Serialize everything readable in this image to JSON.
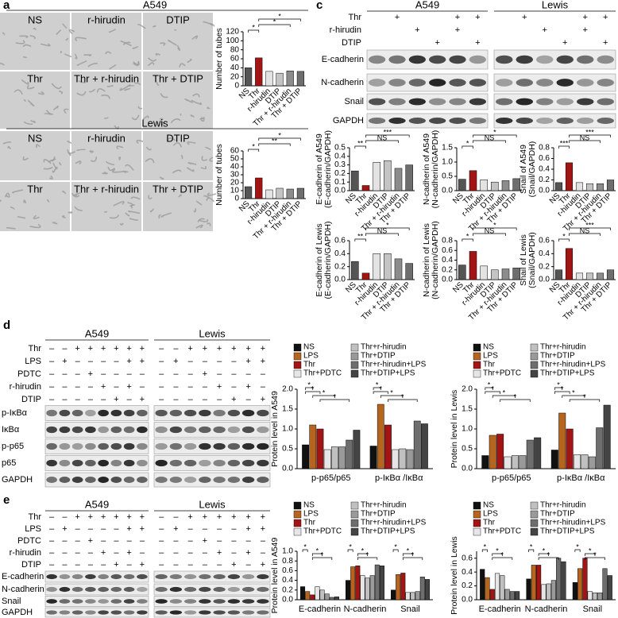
{
  "panel_labels": [
    "a",
    "b",
    "c",
    "d",
    "e"
  ],
  "micrographs": {
    "a": {
      "header": "A549",
      "labels": [
        "NS",
        "r-hirudin",
        "DTIP",
        "Thr",
        "Thr + r-hirudin",
        "Thr + DTIP"
      ]
    },
    "b": {
      "header": "Lewis",
      "labels": [
        "NS",
        "r-hirudin",
        "DTIP",
        "Thr",
        "Thr + r-hirudin",
        "Thr + DTIP"
      ]
    }
  },
  "blots": {
    "c": {
      "headers": [
        "A549",
        "Lewis"
      ],
      "conditions": [
        {
          "name": "Thr",
          "signs": [
            null,
            "+",
            null,
            null,
            "+",
            "+",
            null,
            "+",
            null,
            null,
            "+",
            "+"
          ]
        },
        {
          "name": "r-hirudin",
          "signs": [
            null,
            null,
            "+",
            null,
            "+",
            null,
            null,
            null,
            "+",
            null,
            "+",
            null
          ]
        },
        {
          "name": "DTIP",
          "signs": [
            null,
            null,
            null,
            "+",
            null,
            "+",
            null,
            null,
            null,
            "+",
            null,
            "+"
          ]
        }
      ],
      "rows": [
        "E-cadherin",
        "N-cadherin",
        "Snail",
        "GAPDH"
      ]
    },
    "d": {
      "headers": [
        "A549",
        "Lewis"
      ],
      "conditions": [
        {
          "name": "Thr",
          "signs": [
            "–",
            "–",
            "+",
            "+",
            "+",
            "+",
            "+",
            "+",
            "–",
            "–",
            "+",
            "+",
            "+",
            "+",
            "+",
            "+"
          ]
        },
        {
          "name": "LPS",
          "signs": [
            "–",
            "+",
            "–",
            "–",
            "–",
            "–",
            "+",
            "+",
            "–",
            "+",
            "–",
            "–",
            "–",
            "–",
            "+",
            "+"
          ]
        },
        {
          "name": "PDTC",
          "signs": [
            "–",
            "–",
            "–",
            "+",
            "–",
            "–",
            "–",
            "–",
            "–",
            "–",
            "–",
            "+",
            "–",
            "–",
            "–",
            "–"
          ]
        },
        {
          "name": "r-hirudin",
          "signs": [
            "–",
            "–",
            "–",
            "–",
            "+",
            "–",
            "+",
            "–",
            "–",
            "–",
            "–",
            "–",
            "+",
            "–",
            "+",
            "–"
          ]
        },
        {
          "name": "DTIP",
          "signs": [
            "–",
            "–",
            "–",
            "–",
            "–",
            "+",
            "–",
            "+",
            "–",
            "–",
            "–",
            "–",
            "–",
            "+",
            "–",
            "+"
          ]
        }
      ],
      "rows": [
        "p-IκBα",
        "IκBα",
        "p-p65",
        "p65",
        "GAPDH"
      ]
    },
    "e": {
      "headers": [
        "A549",
        "Lewis"
      ],
      "conditions": [
        {
          "name": "Thr",
          "signs": [
            "–",
            "–",
            "+",
            "+",
            "+",
            "+",
            "+",
            "+",
            "–",
            "–",
            "+",
            "+",
            "+",
            "+",
            "+",
            "+"
          ]
        },
        {
          "name": "LPS",
          "signs": [
            "–",
            "+",
            "–",
            "–",
            "–",
            "–",
            "+",
            "+",
            "–",
            "+",
            "–",
            "–",
            "–",
            "–",
            "+",
            "+"
          ]
        },
        {
          "name": "PDTC",
          "signs": [
            "–",
            "–",
            "–",
            "+",
            "–",
            "–",
            "–",
            "–",
            "–",
            "–",
            "–",
            "+",
            "–",
            "–",
            "–",
            "–"
          ]
        },
        {
          "name": "r-hirudin",
          "signs": [
            "–",
            "–",
            "–",
            "–",
            "+",
            "–",
            "+",
            "–",
            "–",
            "–",
            "–",
            "–",
            "+",
            "–",
            "+",
            "–"
          ]
        },
        {
          "name": "DTIP",
          "signs": [
            "–",
            "–",
            "–",
            "–",
            "–",
            "+",
            "–",
            "+",
            "–",
            "–",
            "–",
            "–",
            "–",
            "+",
            "–",
            "+"
          ]
        }
      ],
      "rows": [
        "E-cadherin",
        "N-cadherin",
        "Snail",
        "GAPDH"
      ]
    }
  },
  "chart_data": [
    {
      "type": "bar",
      "ylabel": [
        "Number of tubes"
      ],
      "categories": [
        "NS",
        "Thr",
        "r-hirudin",
        "DTIP",
        "Thr + r-hirudin",
        "Thr + DTIP"
      ],
      "values": [
        40,
        62,
        32,
        28,
        33,
        32
      ],
      "colors": [
        "#555555",
        "#a31515",
        "#e3e3e3",
        "#c4c4c4",
        "#8c8c8c",
        "#6e6e6e"
      ],
      "ylim": [
        0,
        120
      ],
      "yticks": [
        0,
        20,
        40,
        60,
        80,
        100,
        120
      ],
      "annotations": [
        "*",
        "*",
        "*"
      ]
    },
    {
      "type": "bar",
      "ylabel": [
        "Number of tubes"
      ],
      "categories": [
        "NS",
        "Thr",
        "r-hirudin",
        "DTIP",
        "Thr + r-hirudin",
        "Thr + DTIP"
      ],
      "values": [
        15,
        26,
        11,
        13,
        12,
        13
      ],
      "colors": [
        "#555555",
        "#a31515",
        "#e3e3e3",
        "#c4c4c4",
        "#8c8c8c",
        "#6e6e6e"
      ],
      "ylim": [
        0,
        60
      ],
      "yticks": [
        0,
        10,
        20,
        30,
        40,
        50,
        60
      ],
      "annotations": [
        "*",
        "**",
        "*"
      ]
    },
    {
      "type": "bar",
      "ylabel": [
        "E-cadherin of A549",
        "(E-cadherin/GAPDH)"
      ],
      "categories": [
        "NS",
        "Thr",
        "r-hirudin",
        "DTIP",
        "Thr + r-hirudin",
        "Thr + DTIP"
      ],
      "values": [
        0.23,
        0.06,
        0.33,
        0.35,
        0.26,
        0.3
      ],
      "colors": [
        "#555555",
        "#a31515",
        "#e3e3e3",
        "#c4c4c4",
        "#8c8c8c",
        "#6e6e6e"
      ],
      "ylim": [
        0,
        0.5
      ],
      "yticks": [
        {
          "value": 0,
          "label": "0.0"
        },
        0.1,
        0.2,
        0.3,
        0.4,
        0.5
      ],
      "annotations": [
        "**",
        "NS",
        "***"
      ]
    },
    {
      "type": "bar",
      "ylabel": [
        "N-cadherin of A549",
        "(N-cadherin/GAPDH)"
      ],
      "categories": [
        "NS",
        "Thr",
        "r-hirudin",
        "DTIP",
        "Thr + r-hirudin",
        "Thr + DTIP"
      ],
      "values": [
        0.4,
        0.7,
        0.38,
        0.3,
        0.35,
        0.42
      ],
      "colors": [
        "#555555",
        "#a31515",
        "#e3e3e3",
        "#c4c4c4",
        "#8c8c8c",
        "#6e6e6e"
      ],
      "ylim": [
        0,
        1.5
      ],
      "yticks": [
        {
          "value": 0,
          "label": "0.0"
        },
        0.5,
        {
          "value": 1,
          "label": "1.0"
        },
        1.5
      ],
      "annotations": [
        "*",
        "NS",
        "*"
      ]
    },
    {
      "type": "bar",
      "ylabel": [
        "Snail of A549",
        "(Snail/GAPDH)"
      ],
      "categories": [
        "NS",
        "Thr",
        "r-hirudin",
        "DTIP",
        "Thr + r-hirudin",
        "Thr + DTIP"
      ],
      "values": [
        0.15,
        0.52,
        0.15,
        0.13,
        0.13,
        0.2
      ],
      "colors": [
        "#555555",
        "#a31515",
        "#e3e3e3",
        "#c4c4c4",
        "#8c8c8c",
        "#6e6e6e"
      ],
      "ylim": [
        0,
        0.8
      ],
      "yticks": [
        {
          "value": 0,
          "label": "0.0"
        },
        0.2,
        0.4,
        0.6,
        0.8
      ],
      "annotations": [
        "***",
        "NS",
        "***"
      ]
    },
    {
      "type": "bar",
      "ylabel": [
        "E-cadherin of Lewis",
        "(E-cadherin/GAPDH)"
      ],
      "categories": [
        "NS",
        "Thr",
        "r-hirudin",
        "DTIP",
        "Thr + r-hirudin",
        "Thr + DTIP"
      ],
      "values": [
        0.28,
        0.1,
        0.4,
        0.4,
        0.32,
        0.25
      ],
      "colors": [
        "#555555",
        "#a31515",
        "#e3e3e3",
        "#c4c4c4",
        "#8c8c8c",
        "#6e6e6e"
      ],
      "ylim": [
        0,
        0.6
      ],
      "yticks": [
        {
          "value": 0,
          "label": "0.0"
        },
        0.2,
        0.4,
        0.6
      ],
      "annotations": [
        "**",
        "NS",
        "*"
      ]
    },
    {
      "type": "bar",
      "ylabel": [
        "N-cadherin of Lewis",
        "(N-cadherin/GAPDH)"
      ],
      "categories": [
        "NS",
        "Thr",
        "r-hirudin",
        "DTIP",
        "Thr + r-hirudin",
        "Thr + DTIP"
      ],
      "values": [
        0.3,
        0.58,
        0.28,
        0.2,
        0.22,
        0.24
      ],
      "colors": [
        "#555555",
        "#a31515",
        "#e3e3e3",
        "#c4c4c4",
        "#8c8c8c",
        "#6e6e6e"
      ],
      "ylim": [
        0,
        0.8
      ],
      "yticks": [
        {
          "value": 0,
          "label": "0.0"
        },
        0.2,
        0.4,
        0.6,
        0.8
      ],
      "annotations": [
        "*",
        "NS",
        "*"
      ]
    },
    {
      "type": "bar",
      "ylabel": [
        "Snail of Lewis",
        "(Snail/GAPDH)"
      ],
      "categories": [
        "NS",
        "Thr",
        "r-hirudin",
        "DTIP",
        "Thr + r-hirudin",
        "Thr + DTIP"
      ],
      "values": [
        0.15,
        0.48,
        0.1,
        0.1,
        0.1,
        0.15
      ],
      "colors": [
        "#555555",
        "#a31515",
        "#e3e3e3",
        "#c4c4c4",
        "#8c8c8c",
        "#6e6e6e"
      ],
      "ylim": [
        0,
        0.6
      ],
      "yticks": [
        {
          "value": 0,
          "label": "0.0"
        },
        0.2,
        0.4,
        0.6
      ],
      "annotations": [
        "*",
        "NS",
        "***"
      ]
    },
    {
      "type": "bar",
      "ylabel": [
        "Protein level in A549"
      ],
      "categories": [
        "p-p65/p65",
        "p-IκBα /IκBα"
      ],
      "series": [
        {
          "name": "NS",
          "color": "#111111",
          "values": [
            0.6,
            0.57
          ]
        },
        {
          "name": "LPS",
          "color": "#b5651d",
          "values": [
            1.1,
            1.62
          ]
        },
        {
          "name": "Thr",
          "color": "#a31515",
          "values": [
            1.0,
            1.1
          ]
        },
        {
          "name": "Thr+PDTC",
          "color": "#e6e6e6",
          "values": [
            0.48,
            0.48
          ]
        },
        {
          "name": "Thr+r-hirudin",
          "color": "#c0c0c0",
          "values": [
            0.55,
            0.5
          ]
        },
        {
          "name": "Thr+DTIP",
          "color": "#9a9a9a",
          "values": [
            0.55,
            0.48
          ]
        },
        {
          "name": "Thr+r-hirudin+LPS",
          "color": "#6e6e6e",
          "values": [
            0.72,
            1.2
          ]
        },
        {
          "name": "Thr+DTIP+LPS",
          "color": "#444444",
          "values": [
            0.97,
            1.13
          ]
        }
      ],
      "ylim": [
        0,
        2
      ],
      "yticks": [
        {
          "value": 0,
          "label": "0.0"
        },
        0.5,
        {
          "value": 1,
          "label": "1.0"
        },
        1.5,
        {
          "value": 2,
          "label": "2.0"
        }
      ],
      "annotations": [
        [
          "*",
          "*",
          "*",
          "*"
        ],
        [
          "*",
          "*",
          "*",
          "*"
        ]
      ]
    },
    {
      "type": "bar",
      "ylabel": [
        "Protein level in Lewis"
      ],
      "categories": [
        "p-p65/p65",
        "p-IκBα /IκBα"
      ],
      "series": [
        {
          "name": "NS",
          "color": "#111111",
          "values": [
            0.33,
            0.47
          ]
        },
        {
          "name": "LPS",
          "color": "#b5651d",
          "values": [
            0.84,
            1.4
          ]
        },
        {
          "name": "Thr",
          "color": "#a31515",
          "values": [
            0.87,
            1.0
          ]
        },
        {
          "name": "Thr+PDTC",
          "color": "#e6e6e6",
          "values": [
            0.3,
            0.35
          ]
        },
        {
          "name": "Thr+r-hirudin",
          "color": "#c0c0c0",
          "values": [
            0.33,
            0.35
          ]
        },
        {
          "name": "Thr+DTIP",
          "color": "#9a9a9a",
          "values": [
            0.33,
            0.3
          ]
        },
        {
          "name": "Thr+r-hirudin+LPS",
          "color": "#6e6e6e",
          "values": [
            0.72,
            1.03
          ]
        },
        {
          "name": "Thr+DTIP+LPS",
          "color": "#444444",
          "values": [
            0.78,
            1.6
          ]
        }
      ],
      "ylim": [
        0,
        2
      ],
      "yticks": [
        {
          "value": 0,
          "label": "0.0"
        },
        0.5,
        {
          "value": 1,
          "label": "1.0"
        },
        1.5,
        {
          "value": 2,
          "label": "2.0"
        }
      ],
      "annotations": [
        [
          "*",
          "*",
          "*",
          "*"
        ],
        [
          "*",
          "*",
          "*",
          "*"
        ]
      ]
    },
    {
      "type": "bar",
      "ylabel": [
        "Protein level in A549"
      ],
      "categories": [
        "E-cadherin",
        "N-cadherin",
        "Snail"
      ],
      "series": [
        {
          "name": "NS",
          "color": "#111111",
          "values": [
            0.27,
            0.4,
            0.2
          ]
        },
        {
          "name": "LPS",
          "color": "#b5651d",
          "values": [
            0.17,
            0.68,
            0.52
          ]
        },
        {
          "name": "Thr",
          "color": "#a31515",
          "values": [
            0.1,
            0.7,
            0.55
          ]
        },
        {
          "name": "Thr+PDTC",
          "color": "#e6e6e6",
          "values": [
            0.27,
            0.5,
            0.15
          ]
        },
        {
          "name": "Thr+r-hirudin",
          "color": "#c0c0c0",
          "values": [
            0.2,
            0.45,
            0.15
          ]
        },
        {
          "name": "Thr+DTIP",
          "color": "#9a9a9a",
          "values": [
            0.12,
            0.5,
            0.17
          ]
        },
        {
          "name": "Thr+r-hirudin+LPS",
          "color": "#6e6e6e",
          "values": [
            0.05,
            0.72,
            0.47
          ]
        },
        {
          "name": "Thr+DTIP+LPS",
          "color": "#444444",
          "values": [
            0.06,
            0.7,
            0.42
          ]
        }
      ],
      "ylim": [
        0,
        1
      ],
      "yticks": [
        {
          "value": 0,
          "label": "0.0"
        },
        0.2,
        0.4,
        0.6,
        0.8,
        {
          "value": 1,
          "label": "1.0"
        }
      ],
      "annotations": [
        [
          "*",
          "*",
          "*"
        ],
        [
          "*",
          "*",
          "*"
        ],
        [
          "*",
          "*",
          "*"
        ]
      ]
    },
    {
      "type": "bar",
      "ylabel": [
        "Protein level in Lewis"
      ],
      "categories": [
        "E-cadherin",
        "N-cadherin",
        "Snail"
      ],
      "series": [
        {
          "name": "NS",
          "color": "#111111",
          "values": [
            0.44,
            0.3,
            0.25
          ]
        },
        {
          "name": "LPS",
          "color": "#b5651d",
          "values": [
            0.32,
            0.5,
            0.45
          ]
        },
        {
          "name": "Thr",
          "color": "#a31515",
          "values": [
            0.15,
            0.5,
            0.6
          ]
        },
        {
          "name": "Thr+PDTC",
          "color": "#e6e6e6",
          "values": [
            0.38,
            0.22,
            0.12
          ]
        },
        {
          "name": "Thr+r-hirudin",
          "color": "#c0c0c0",
          "values": [
            0.35,
            0.23,
            0.1
          ]
        },
        {
          "name": "Thr+DTIP",
          "color": "#9a9a9a",
          "values": [
            0.15,
            0.28,
            0.1
          ]
        },
        {
          "name": "Thr+r-hirudin+LPS",
          "color": "#6e6e6e",
          "values": [
            0.12,
            0.6,
            0.45
          ]
        },
        {
          "name": "Thr+DTIP+LPS",
          "color": "#444444",
          "values": [
            0.12,
            0.55,
            0.35
          ]
        }
      ],
      "ylim": [
        0,
        0.7
      ],
      "yticks": [
        {
          "value": 0,
          "label": "0.0"
        },
        0.2,
        0.4,
        0.6
      ],
      "annotations": [
        [
          "*",
          "*",
          "*"
        ],
        [
          "*",
          "*",
          "*"
        ],
        [
          "*",
          "*",
          "*"
        ]
      ]
    }
  ]
}
